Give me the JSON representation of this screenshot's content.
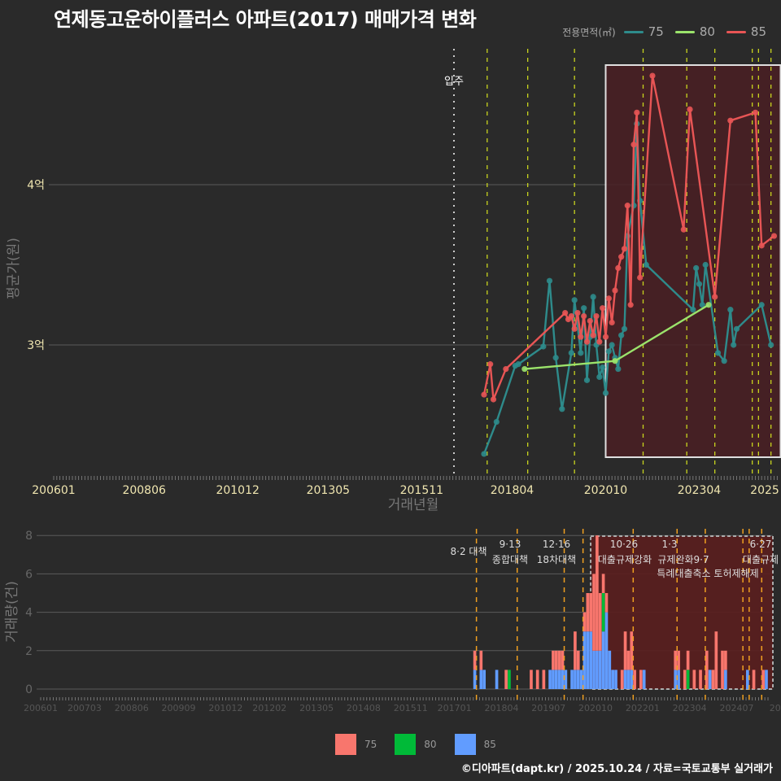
{
  "title": "연제동고운하이플러스 아파트(2017) 매매가격 변화",
  "legend_top": {
    "label": "전용면적(㎡)",
    "items": [
      {
        "name": "75",
        "color": "#2e8b8b"
      },
      {
        "name": "80",
        "color": "#9be36b"
      },
      {
        "name": "85",
        "color": "#e85555"
      }
    ]
  },
  "legend_bottom": {
    "items": [
      {
        "name": "75",
        "color": "#f8766d"
      },
      {
        "name": "80",
        "color": "#00ba38"
      },
      {
        "name": "85",
        "color": "#619cff"
      }
    ]
  },
  "footer": "©디아파트(dapt.kr) / 2025.10.24 / 자료=국토교통부 실거래가",
  "chart_data": [
    {
      "type": "line",
      "title": "연제동고운하이플러스 아파트(2017) 매매가격 변화",
      "xlabel": "거래년월",
      "ylabel": "평균가(원)",
      "x_ticks": [
        "200601",
        "200806",
        "201012",
        "201305",
        "201511",
        "201804",
        "202010",
        "202304",
        "2025"
      ],
      "y_ticks": [
        "3억",
        "4억"
      ],
      "ylim": [
        2.75,
        4.95
      ],
      "annotation": "입주",
      "series": [
        {
          "name": "75",
          "color": "#2e8b8b",
          "points": [
            [
              "2017-07",
              2.32
            ],
            [
              "2017-11",
              2.52
            ],
            [
              "2018-05",
              2.87
            ],
            [
              "2018-06",
              2.88
            ],
            [
              "2019-02",
              2.99
            ],
            [
              "2019-04",
              3.4
            ],
            [
              "2019-06",
              2.92
            ],
            [
              "2019-08",
              2.6
            ],
            [
              "2019-11",
              2.95
            ],
            [
              "2019-12",
              3.28
            ],
            [
              "2020-02",
              2.95
            ],
            [
              "2020-03",
              3.23
            ],
            [
              "2020-04",
              2.78
            ],
            [
              "2020-05",
              3.05
            ],
            [
              "2020-06",
              3.3
            ],
            [
              "2020-07",
              3.0
            ],
            [
              "2020-08",
              2.8
            ],
            [
              "2020-09",
              2.86
            ],
            [
              "2020-10",
              2.7
            ],
            [
              "2020-11",
              2.96
            ],
            [
              "2020-12",
              3.0
            ],
            [
              "2021-01",
              2.92
            ],
            [
              "2021-02",
              2.85
            ],
            [
              "2021-03",
              3.06
            ],
            [
              "2021-04",
              3.1
            ],
            [
              "2021-05",
              3.68
            ],
            [
              "2021-07",
              3.87
            ],
            [
              "2021-08",
              4.38
            ],
            [
              "2021-09",
              3.9
            ],
            [
              "2021-11",
              3.5
            ],
            [
              "2023-02",
              3.22
            ],
            [
              "2023-03",
              3.48
            ],
            [
              "2023-04",
              3.38
            ],
            [
              "2023-05",
              3.25
            ],
            [
              "2023-06",
              3.5
            ],
            [
              "2023-10",
              2.95
            ],
            [
              "2023-12",
              2.9
            ],
            [
              "2024-02",
              3.22
            ],
            [
              "2024-03",
              3.0
            ],
            [
              "2024-04",
              3.1
            ],
            [
              "2024-12",
              3.25
            ],
            [
              "2025-03",
              3.0
            ]
          ]
        },
        {
          "name": "80",
          "color": "#9be36b",
          "points": [
            [
              "2018-08",
              2.85
            ],
            [
              "2021-01",
              2.9
            ],
            [
              "2023-07",
              3.25
            ]
          ]
        },
        {
          "name": "85",
          "color": "#e85555",
          "points": [
            [
              "2017-07",
              2.69
            ],
            [
              "2017-09",
              2.88
            ],
            [
              "2017-10",
              2.66
            ],
            [
              "2018-02",
              2.85
            ],
            [
              "2019-09",
              3.2
            ],
            [
              "2019-10",
              3.16
            ],
            [
              "2019-11",
              3.18
            ],
            [
              "2019-12",
              3.1
            ],
            [
              "2020-01",
              3.2
            ],
            [
              "2020-02",
              3.05
            ],
            [
              "2020-03",
              3.18
            ],
            [
              "2020-04",
              3.02
            ],
            [
              "2020-05",
              3.15
            ],
            [
              "2020-06",
              3.06
            ],
            [
              "2020-07",
              3.18
            ],
            [
              "2020-08",
              3.02
            ],
            [
              "2020-09",
              3.23
            ],
            [
              "2020-10",
              3.05
            ],
            [
              "2020-11",
              3.29
            ],
            [
              "2020-12",
              3.14
            ],
            [
              "2021-01",
              3.34
            ],
            [
              "2021-02",
              3.48
            ],
            [
              "2021-03",
              3.55
            ],
            [
              "2021-04",
              3.6
            ],
            [
              "2021-05",
              3.87
            ],
            [
              "2021-06",
              3.25
            ],
            [
              "2021-07",
              4.25
            ],
            [
              "2021-08",
              4.45
            ],
            [
              "2021-09",
              3.42
            ],
            [
              "2022-01",
              4.68
            ],
            [
              "2022-11",
              3.72
            ],
            [
              "2023-01",
              4.47
            ],
            [
              "2023-09",
              3.3
            ],
            [
              "2024-02",
              4.4
            ],
            [
              "2024-10",
              4.45
            ],
            [
              "2024-12",
              3.62
            ],
            [
              "2025-04",
              3.68
            ]
          ]
        }
      ],
      "highlight_box": {
        "from": "2020-10",
        "to": "2025-04"
      }
    },
    {
      "type": "bar",
      "title": "",
      "xlabel": "",
      "ylabel": "거래량(건)",
      "ylim": [
        0,
        8
      ],
      "y_ticks": [
        0,
        2,
        4,
        6,
        8
      ],
      "x_ticks": [
        "200601",
        "200703",
        "200806",
        "200909",
        "201012",
        "201202",
        "201305",
        "201408",
        "201511",
        "201701",
        "201804",
        "201907",
        "202010",
        "202201",
        "202304",
        "202407",
        "20251"
      ],
      "policy_annotations": [
        {
          "date": "2017-08",
          "label": "8·2 대책"
        },
        {
          "date": "2018-09",
          "label": "9·13 종합대책"
        },
        {
          "date": "2019-12",
          "label": "12·16 18차대책"
        },
        {
          "date": "2021-10",
          "label": "10·26 대출규제강화"
        },
        {
          "date": "2023-01",
          "label": "1·3 규제완화"
        },
        {
          "date": "2023-09",
          "label": "9·7 특례대출축소"
        },
        {
          "date": "2025-02",
          "label": "토허제해제"
        },
        {
          "date": "2025-06",
          "label": "6·27 대출규제"
        }
      ],
      "series": [
        {
          "name": "75",
          "color": "#f8766d"
        },
        {
          "name": "80",
          "color": "#00ba38"
        },
        {
          "name": "85",
          "color": "#619cff"
        }
      ],
      "bars": [
        {
          "x": "2017-07",
          "75": 1,
          "80": 0,
          "85": 1
        },
        {
          "x": "2017-09",
          "75": 1,
          "80": 0,
          "85": 1
        },
        {
          "x": "2017-10",
          "75": 0,
          "80": 0,
          "85": 1
        },
        {
          "x": "2018-02",
          "75": 0,
          "80": 0,
          "85": 1
        },
        {
          "x": "2018-05",
          "75": 1,
          "80": 0,
          "85": 0
        },
        {
          "x": "2018-06",
          "75": 0,
          "80": 1,
          "85": 0
        },
        {
          "x": "2019-01",
          "75": 1,
          "80": 0,
          "85": 0
        },
        {
          "x": "2019-03",
          "75": 1,
          "80": 0,
          "85": 0
        },
        {
          "x": "2019-05",
          "75": 1,
          "80": 0,
          "85": 0
        },
        {
          "x": "2019-07",
          "75": 0,
          "80": 0,
          "85": 1
        },
        {
          "x": "2019-08",
          "75": 1,
          "80": 0,
          "85": 1
        },
        {
          "x": "2019-09",
          "75": 1,
          "80": 0,
          "85": 1
        },
        {
          "x": "2019-10",
          "75": 1,
          "80": 0,
          "85": 1
        },
        {
          "x": "2019-11",
          "75": 1,
          "80": 0,
          "85": 1
        },
        {
          "x": "2019-12",
          "75": 0,
          "80": 0,
          "85": 1
        },
        {
          "x": "2020-02",
          "75": 0,
          "80": 0,
          "85": 1
        },
        {
          "x": "2020-03",
          "75": 2,
          "80": 0,
          "85": 1
        },
        {
          "x": "2020-04",
          "75": 1,
          "80": 0,
          "85": 1
        },
        {
          "x": "2020-05",
          "75": 0,
          "80": 0,
          "85": 1
        },
        {
          "x": "2020-06",
          "75": 1,
          "80": 0,
          "85": 3
        },
        {
          "x": "2020-07",
          "75": 2,
          "80": 0,
          "85": 3
        },
        {
          "x": "2020-08",
          "75": 2,
          "80": 0,
          "85": 3
        },
        {
          "x": "2020-09",
          "75": 4,
          "80": 0,
          "85": 2
        },
        {
          "x": "2020-10",
          "75": 6,
          "80": 0,
          "85": 2
        },
        {
          "x": "2020-11",
          "75": 3,
          "80": 0,
          "85": 2
        },
        {
          "x": "2020-12",
          "75": 1,
          "80": 2,
          "85": 3
        },
        {
          "x": "2021-01",
          "75": 1,
          "80": 0,
          "85": 4
        },
        {
          "x": "2021-02",
          "75": 0,
          "80": 0,
          "85": 2
        },
        {
          "x": "2021-03",
          "75": 0,
          "80": 0,
          "85": 1
        },
        {
          "x": "2021-04",
          "75": 0,
          "80": 0,
          "85": 1
        },
        {
          "x": "2021-06",
          "75": 1,
          "80": 0,
          "85": 0
        },
        {
          "x": "2021-07",
          "75": 2,
          "80": 0,
          "85": 1
        },
        {
          "x": "2021-08",
          "75": 1,
          "80": 0,
          "85": 1
        },
        {
          "x": "2021-09",
          "75": 2,
          "80": 0,
          "85": 1
        },
        {
          "x": "2021-10",
          "75": 1,
          "80": 0,
          "85": 0
        },
        {
          "x": "2021-12",
          "75": 1,
          "80": 0,
          "85": 0
        },
        {
          "x": "2022-01",
          "75": 0,
          "80": 0,
          "85": 1
        },
        {
          "x": "2022-11",
          "75": 1,
          "80": 0,
          "85": 1
        },
        {
          "x": "2022-12",
          "75": 1,
          "80": 0,
          "85": 1
        },
        {
          "x": "2023-02",
          "75": 1,
          "80": 0,
          "85": 0
        },
        {
          "x": "2023-03",
          "75": 1,
          "80": 1,
          "85": 0
        },
        {
          "x": "2023-05",
          "75": 1,
          "80": 0,
          "85": 0
        },
        {
          "x": "2023-07",
          "75": 1,
          "80": 0,
          "85": 0
        },
        {
          "x": "2023-09",
          "75": 2,
          "80": 0,
          "85": 0
        },
        {
          "x": "2023-10",
          "75": 0,
          "80": 0,
          "85": 1
        },
        {
          "x": "2023-11",
          "75": 1,
          "80": 0,
          "85": 0
        },
        {
          "x": "2023-12",
          "75": 3,
          "80": 0,
          "85": 0
        },
        {
          "x": "2024-02",
          "75": 2,
          "80": 0,
          "85": 0
        },
        {
          "x": "2024-03",
          "75": 1,
          "80": 0,
          "85": 1
        },
        {
          "x": "2024-10",
          "75": 0,
          "80": 0,
          "85": 1
        },
        {
          "x": "2024-12",
          "75": 1,
          "80": 0,
          "85": 0
        },
        {
          "x": "2025-03",
          "75": 1,
          "80": 0,
          "85": 0
        },
        {
          "x": "2025-04",
          "75": 0,
          "80": 0,
          "85": 1
        }
      ]
    }
  ]
}
